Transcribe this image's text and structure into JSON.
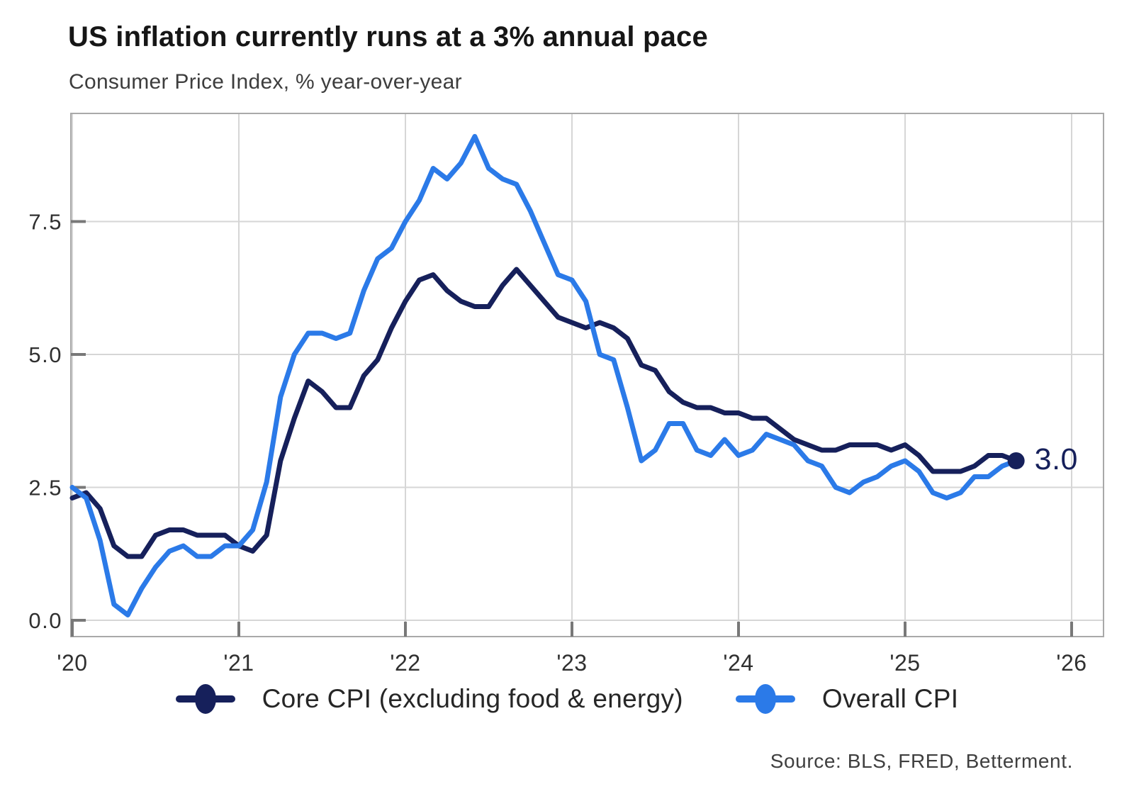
{
  "header": {
    "title": "US inflation currently runs at a 3% annual pace",
    "subtitle": "Consumer Price Index, % year-over-year"
  },
  "footer": {
    "source": "Source: BLS, FRED, Betterment."
  },
  "chart_data": {
    "type": "line",
    "x_interval": "monthly",
    "x_start": "2020-01",
    "x_end": "2025-09",
    "grid": true,
    "legend_position": "bottom",
    "ylim": [
      -0.3,
      9.55
    ],
    "yticks": {
      "labels": [
        "0.0",
        "2.5",
        "5.0",
        "7.5"
      ],
      "values": [
        0,
        2.5,
        5,
        7.5
      ]
    },
    "xticks": {
      "labels": [
        "'20",
        "'21",
        "'22",
        "'23",
        "'24",
        "'25",
        "'26"
      ],
      "years": [
        2020,
        2021,
        2022,
        2023,
        2024,
        2025,
        2026
      ]
    },
    "series": [
      {
        "name": "Core CPI (excluding food & energy)",
        "color": "#16205b",
        "values": [
          2.3,
          2.4,
          2.1,
          1.4,
          1.2,
          1.2,
          1.6,
          1.7,
          1.7,
          1.6,
          1.6,
          1.6,
          1.4,
          1.3,
          1.6,
          3.0,
          3.8,
          4.5,
          4.3,
          4.0,
          4.0,
          4.6,
          4.9,
          5.5,
          6.0,
          6.4,
          6.5,
          6.2,
          6.0,
          5.9,
          5.9,
          6.3,
          6.6,
          6.3,
          6.0,
          5.7,
          5.6,
          5.5,
          5.6,
          5.5,
          5.3,
          4.8,
          4.7,
          4.3,
          4.1,
          4.0,
          4.0,
          3.9,
          3.9,
          3.8,
          3.8,
          3.6,
          3.4,
          3.3,
          3.2,
          3.2,
          3.3,
          3.3,
          3.3,
          3.2,
          3.3,
          3.1,
          2.8,
          2.8,
          2.8,
          2.9,
          3.1,
          3.1,
          3.0
        ]
      },
      {
        "name": "Overall CPI",
        "color": "#2b7ae8",
        "values": [
          2.5,
          2.3,
          1.5,
          0.3,
          0.1,
          0.6,
          1.0,
          1.3,
          1.4,
          1.2,
          1.2,
          1.4,
          1.4,
          1.7,
          2.6,
          4.2,
          5.0,
          5.4,
          5.4,
          5.3,
          5.4,
          6.2,
          6.8,
          7.0,
          7.5,
          7.9,
          8.5,
          8.3,
          8.6,
          9.1,
          8.5,
          8.3,
          8.2,
          7.7,
          7.1,
          6.5,
          6.4,
          6.0,
          5.0,
          4.9,
          4.0,
          3.0,
          3.2,
          3.7,
          3.7,
          3.2,
          3.1,
          3.4,
          3.1,
          3.2,
          3.5,
          3.4,
          3.3,
          3.0,
          2.9,
          2.5,
          2.4,
          2.6,
          2.7,
          2.9,
          3.0,
          2.8,
          2.4,
          2.3,
          2.4,
          2.7,
          2.7,
          2.9,
          3.0
        ]
      }
    ],
    "end_label": "3.0",
    "end_dot_color": "#16205b"
  }
}
